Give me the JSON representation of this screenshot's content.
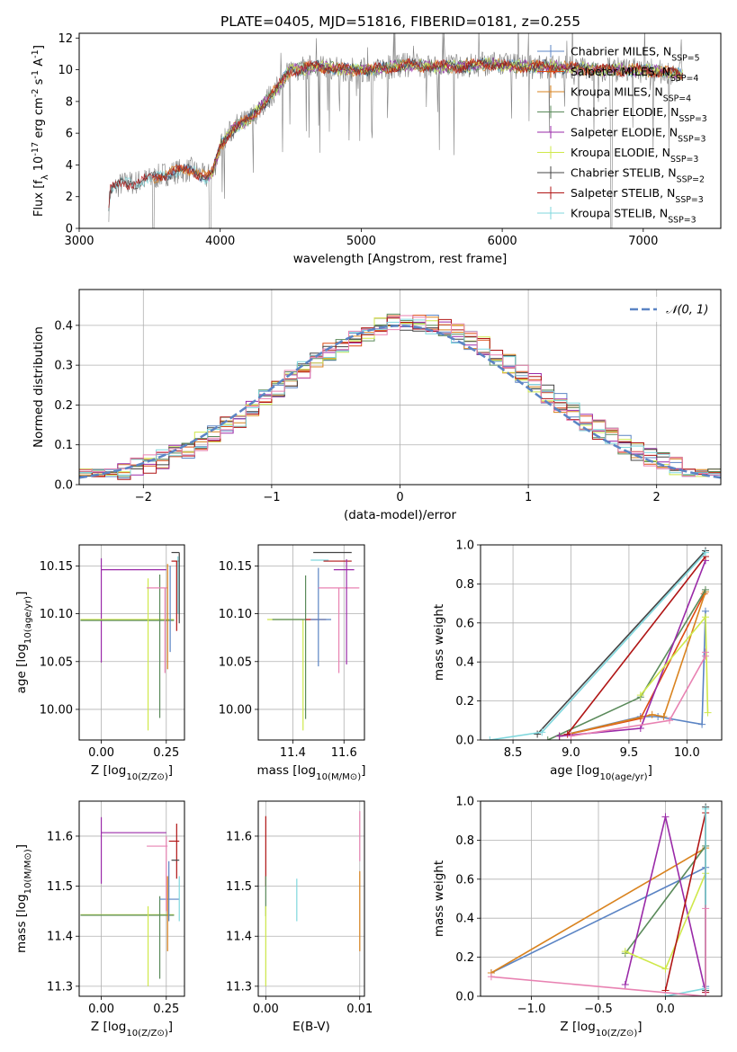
{
  "figure": {
    "title": "PLATE=0405, MJD=51816, FIBERID=0181, z=0.255"
  },
  "colors": {
    "chabrier_miles": "#5b84c4",
    "salpeter_miles": "#dd4c14",
    "kroupa_miles": "#d9831f",
    "chabrier_elodie": "#5a8a5a",
    "salpeter_elodie": "#9a2aa8",
    "kroupa_elodie": "#cfe84a",
    "chabrier_stelib": "#444444",
    "salpeter_stelib": "#b01515",
    "kroupa_stelib": "#7fd7dd",
    "extra_pink": "#e882b2",
    "data_grey": "#808080",
    "gauss": "#5b84c4",
    "grid": "#b0b0b0"
  },
  "chart_data": [
    {
      "id": "spectrum",
      "type": "line",
      "xlabel": "wavelength [Angstrom, rest frame]",
      "ylabel": "Flux [f_λ 10^-17 erg cm^-2 s^-1 A^-1]",
      "xlim": [
        3000,
        7550
      ],
      "ylim": [
        0,
        12.3
      ],
      "xticks": [
        "3000",
        "4000",
        "5000",
        "6000",
        "7000"
      ],
      "yticks": [
        "0",
        "2",
        "4",
        "6",
        "8",
        "10",
        "12"
      ],
      "grid": false,
      "legend_position": "upper-right",
      "legend": [
        "Chabrier MILES, N_SSP=5",
        "Salpeter MILES, N_SSP=4",
        "Kroupa MILES, N_SSP=4",
        "Chabrier ELODIE, N_SSP=3",
        "Salpeter ELODIE, N_SSP=3",
        "Kroupa ELODIE, N_SSP=3",
        "Chabrier STELIB, N_SSP=2",
        "Salpeter STELIB, N_SSP=3",
        "Kroupa STELIB, N_SSP=3"
      ],
      "continuum": {
        "x": [
          3200,
          3220,
          3300,
          3400,
          3500,
          3600,
          3700,
          3800,
          3900,
          3950,
          4000,
          4100,
          4200,
          4300,
          4400,
          4500,
          4700,
          4900,
          5100,
          5300,
          5500,
          5700,
          5900,
          6100,
          6300,
          6500,
          6700,
          6900,
          7100,
          7280
        ],
        "y": [
          0.0,
          2.4,
          2.8,
          2.9,
          3.1,
          3.4,
          3.6,
          3.7,
          3.2,
          3.6,
          5.2,
          6.4,
          6.8,
          7.8,
          8.8,
          10.0,
          10.2,
          10.0,
          10.0,
          10.3,
          10.2,
          10.2,
          10.4,
          10.2,
          10.2,
          10.1,
          10.0,
          10.0,
          9.9,
          9.7
        ]
      }
    },
    {
      "id": "residuals",
      "type": "line",
      "xlabel": "(data-model)/error",
      "ylabel": "Normed distribution",
      "xlim": [
        -2.5,
        2.5
      ],
      "ylim": [
        0,
        0.49
      ],
      "xticks": [
        "-2",
        "-1",
        "0",
        "1",
        "2"
      ],
      "yticks": [
        "0.0",
        "0.1",
        "0.2",
        "0.3",
        "0.4"
      ],
      "grid": true,
      "legend_position": "upper-right",
      "legend": [
        "N(0,1)"
      ],
      "gaussian": {
        "mean": 0,
        "sigma": 1
      },
      "histogram_bin_width": 0.1
    },
    {
      "id": "age-vs-Z",
      "type": "scatter",
      "xlabel": "Z [log10(Z/Z⊙)]",
      "ylabel": "age [log10(age/yr)]",
      "xlim": [
        -0.085,
        0.32
      ],
      "ylim": [
        9.968,
        10.172
      ],
      "xticks": [
        "0.00",
        "0.25"
      ],
      "yticks": [
        "10.00",
        "10.05",
        "10.10",
        "10.15"
      ],
      "grid": true,
      "errorbars": [
        {
          "series": "salpeter_elodie",
          "x": 0.0,
          "xlo": 0.0,
          "xhi": 0.25,
          "y": 10.146,
          "ylo": 10.049,
          "yhi": 10.158
        },
        {
          "series": "kroupa_elodie",
          "x": 0.0,
          "xlo": -0.08,
          "xhi": 0.28,
          "y": 10.094,
          "ylo": 10.094,
          "yhi": 10.094
        },
        {
          "series": "chabrier_elodie",
          "x": 0.0,
          "xlo": -0.08,
          "xhi": 0.28,
          "y": 10.093,
          "ylo": 10.093,
          "yhi": 10.093
        },
        {
          "series": "kroupa_elodie",
          "x": 0.18,
          "xlo": 0.18,
          "xhi": 0.18,
          "y": 10.094,
          "ylo": 9.978,
          "yhi": 10.137
        },
        {
          "series": "chabrier_elodie",
          "x": 0.225,
          "xlo": 0.225,
          "xhi": 0.225,
          "y": 10.094,
          "ylo": 9.991,
          "yhi": 10.141
        },
        {
          "series": "extra_pink",
          "x": 0.245,
          "xlo": 0.175,
          "xhi": 0.255,
          "y": 10.127,
          "ylo": 10.038,
          "yhi": 10.127
        },
        {
          "series": "kroupa_miles",
          "x": 0.255,
          "xlo": 0.255,
          "xhi": 0.255,
          "y": 10.128,
          "ylo": 10.042,
          "yhi": 10.152
        },
        {
          "series": "chabrier_miles",
          "x": 0.265,
          "xlo": 0.265,
          "xhi": 0.265,
          "y": 10.12,
          "ylo": 10.06,
          "yhi": 10.15
        },
        {
          "series": "salpeter_stelib",
          "x": 0.29,
          "xlo": 0.27,
          "xhi": 0.3,
          "y": 10.155,
          "ylo": 10.082,
          "yhi": 10.155
        },
        {
          "series": "chabrier_stelib",
          "x": 0.3,
          "xlo": 0.27,
          "xhi": 0.3,
          "y": 10.164,
          "ylo": 10.09,
          "yhi": 10.164
        },
        {
          "series": "kroupa_stelib",
          "x": 0.295,
          "xlo": 0.295,
          "xhi": 0.295,
          "y": 10.15,
          "ylo": 10.1,
          "yhi": 10.16
        }
      ]
    },
    {
      "id": "age-vs-mass",
      "type": "scatter",
      "xlabel": "mass [log10(M/M⊙)]",
      "xlim": [
        11.265,
        11.68
      ],
      "ylim": [
        9.968,
        10.172
      ],
      "xticks": [
        "11.4",
        "11.6"
      ],
      "yticks": [
        "10.00",
        "10.05",
        "10.10",
        "10.15"
      ],
      "grid": true,
      "errorbars": [
        {
          "series": "kroupa_elodie",
          "x": 11.44,
          "xlo": 11.3,
          "xhi": 11.44,
          "y": 10.094,
          "ylo": 9.978,
          "yhi": 10.094
        },
        {
          "series": "chabrier_elodie",
          "x": 11.45,
          "xlo": 11.32,
          "xhi": 11.45,
          "y": 10.094,
          "ylo": 9.99,
          "yhi": 10.14
        },
        {
          "series": "salpeter_stelib",
          "x": 11.52,
          "xlo": 11.45,
          "xhi": 11.53,
          "y": 10.094,
          "ylo": 10.094,
          "yhi": 10.094
        },
        {
          "series": "chabrier_miles",
          "x": 11.5,
          "xlo": 11.47,
          "xhi": 11.55,
          "y": 10.094,
          "ylo": 10.045,
          "yhi": 10.148
        },
        {
          "series": "chabrier_stelib",
          "x": 11.5,
          "xlo": 11.48,
          "xhi": 11.63,
          "y": 10.164,
          "ylo": 10.164,
          "yhi": 10.164
        },
        {
          "series": "kroupa_stelib",
          "x": 11.5,
          "xlo": 11.47,
          "xhi": 11.54,
          "y": 10.156,
          "ylo": 10.156,
          "yhi": 10.156
        },
        {
          "series": "salpeter_stelib",
          "x": 11.59,
          "xlo": 11.52,
          "xhi": 11.63,
          "y": 10.155,
          "ylo": 10.155,
          "yhi": 10.155
        },
        {
          "series": "extra_pink",
          "x": 11.58,
          "xlo": 11.5,
          "xhi": 11.66,
          "y": 10.127,
          "ylo": 10.038,
          "yhi": 10.127
        },
        {
          "series": "salpeter_elodie",
          "x": 11.61,
          "xlo": 11.56,
          "xhi": 11.64,
          "y": 10.146,
          "ylo": 10.047,
          "yhi": 10.157
        },
        {
          "series": "kroupa_miles",
          "x": 11.58,
          "xlo": 11.58,
          "xhi": 11.58,
          "y": 10.128,
          "ylo": 10.128,
          "yhi": 10.128
        }
      ]
    },
    {
      "id": "mass-weight-vs-age",
      "type": "line",
      "xlabel": "age [log10(age/yr)]",
      "ylabel": "mass weight",
      "xlim": [
        8.22,
        10.3
      ],
      "ylim": [
        0,
        1
      ],
      "xticks": [
        "8.5",
        "9.0",
        "9.5",
        "10.0"
      ],
      "yticks": [
        "0.0",
        "0.2",
        "0.4",
        "0.6",
        "0.8",
        "1.0"
      ],
      "grid": true,
      "series": [
        {
          "name": "Chabrier MILES",
          "color": "chabrier_miles",
          "x": [
            8.9,
            9.6,
            9.75,
            10.13,
            10.16
          ],
          "y": [
            0.02,
            0.12,
            0.12,
            0.08,
            0.66
          ]
        },
        {
          "name": "Salpeter MILES",
          "color": "salpeter_miles",
          "x": [
            8.9,
            9.6,
            10.15
          ],
          "y": [
            0.02,
            0.11,
            0.75
          ]
        },
        {
          "name": "Kroupa MILES",
          "color": "kroupa_miles",
          "x": [
            8.9,
            9.7,
            9.8,
            10.16
          ],
          "y": [
            0.02,
            0.13,
            0.12,
            0.76
          ]
        },
        {
          "name": "Chabrier ELODIE",
          "color": "chabrier_elodie",
          "x": [
            8.8,
            9.6,
            10.16
          ],
          "y": [
            0.0,
            0.22,
            0.77
          ]
        },
        {
          "name": "Salpeter ELODIE",
          "color": "salpeter_elodie",
          "x": [
            8.9,
            9.6,
            10.16
          ],
          "y": [
            0.02,
            0.06,
            0.92
          ]
        },
        {
          "name": "Kroupa ELODIE",
          "color": "kroupa_elodie",
          "x": [
            9.6,
            10.16,
            10.18
          ],
          "y": [
            0.23,
            0.63,
            0.14
          ]
        },
        {
          "name": "Chabrier STELIB",
          "color": "chabrier_stelib",
          "x": [
            8.71,
            10.16
          ],
          "y": [
            0.03,
            0.97
          ]
        },
        {
          "name": "Salpeter STELIB",
          "color": "salpeter_stelib",
          "x": [
            8.97,
            10.16
          ],
          "y": [
            0.03,
            0.94
          ]
        },
        {
          "name": "Kroupa STELIB",
          "color": "kroupa_stelib",
          "x": [
            8.3,
            8.75,
            10.16
          ],
          "y": [
            0.0,
            0.04,
            0.96
          ]
        },
        {
          "name": "",
          "color": "extra_pink",
          "x": [
            9.0,
            9.85,
            10.16,
            10.16
          ],
          "y": [
            0.02,
            0.1,
            0.43,
            0.45
          ]
        }
      ]
    },
    {
      "id": "mass-vs-Z",
      "type": "scatter",
      "xlabel": "Z [log10(Z/Z⊙)]",
      "ylabel": "mass [log10(M/M⊙)]",
      "xlim": [
        -0.085,
        0.32
      ],
      "ylim": [
        11.28,
        11.67
      ],
      "xticks": [
        "0.00",
        "0.25"
      ],
      "yticks": [
        "11.3",
        "11.4",
        "11.5",
        "11.6"
      ],
      "grid": true,
      "errorbars": [
        {
          "series": "salpeter_elodie",
          "x": 0.0,
          "xlo": 0.0,
          "xhi": 0.25,
          "y": 11.607,
          "ylo": 11.505,
          "yhi": 11.638
        },
        {
          "series": "kroupa_elodie",
          "x": 0.0,
          "xlo": -0.08,
          "xhi": 0.28,
          "y": 11.443,
          "ylo": 11.443,
          "yhi": 11.443
        },
        {
          "series": "chabrier_elodie",
          "x": 0.0,
          "xlo": -0.08,
          "xhi": 0.28,
          "y": 11.442,
          "ylo": 11.442,
          "yhi": 11.442
        },
        {
          "series": "kroupa_elodie",
          "x": 0.18,
          "xlo": 0.18,
          "xhi": 0.18,
          "y": 11.44,
          "ylo": 11.3,
          "yhi": 11.46
        },
        {
          "series": "chabrier_elodie",
          "x": 0.225,
          "xlo": 0.225,
          "xhi": 0.225,
          "y": 11.44,
          "ylo": 11.315,
          "yhi": 11.48
        },
        {
          "series": "chabrier_miles",
          "x": 0.26,
          "xlo": 0.225,
          "xhi": 0.3,
          "y": 11.474,
          "ylo": 11.43,
          "yhi": 11.55
        },
        {
          "series": "extra_pink",
          "x": 0.25,
          "xlo": 0.175,
          "xhi": 0.255,
          "y": 11.58,
          "ylo": 11.45,
          "yhi": 11.6
        },
        {
          "series": "kroupa_miles",
          "x": 0.255,
          "xlo": 0.255,
          "xhi": 0.255,
          "y": 11.44,
          "ylo": 11.37,
          "yhi": 11.52
        },
        {
          "series": "salpeter_stelib",
          "x": 0.29,
          "xlo": 0.26,
          "xhi": 0.3,
          "y": 11.59,
          "ylo": 11.515,
          "yhi": 11.625
        },
        {
          "series": "chabrier_stelib",
          "x": 0.29,
          "xlo": 0.27,
          "xhi": 0.3,
          "y": 11.552,
          "ylo": 11.552,
          "yhi": 11.552
        },
        {
          "series": "kroupa_stelib",
          "x": 0.3,
          "xlo": 0.3,
          "xhi": 0.3,
          "y": 11.48,
          "ylo": 11.43,
          "yhi": 11.52
        }
      ]
    },
    {
      "id": "mass-vs-ebv",
      "type": "scatter",
      "xlabel": "E(B-V)",
      "xlim": [
        -0.0008,
        0.0105
      ],
      "ylim": [
        11.28,
        11.67
      ],
      "xticks": [
        "0.00",
        "0.01"
      ],
      "yticks": [
        "11.3",
        "11.4",
        "11.5",
        "11.6"
      ],
      "grid": true,
      "errorbars": [
        {
          "series": "salpeter_stelib",
          "x": 0.0,
          "xlo": 0.0,
          "xhi": 0.0,
          "y": 11.58,
          "ylo": 11.5,
          "yhi": 11.64
        },
        {
          "series": "chabrier_elodie",
          "x": 0.0,
          "xlo": 0.0,
          "xhi": 0.0,
          "y": 11.48,
          "ylo": 11.44,
          "yhi": 11.52
        },
        {
          "series": "kroupa_elodie",
          "x": 0.0,
          "xlo": 0.0,
          "xhi": 0.0,
          "y": 11.38,
          "ylo": 11.3,
          "yhi": 11.46
        },
        {
          "series": "kroupa_stelib",
          "x": 0.0033,
          "xlo": 0.0033,
          "xhi": 0.0033,
          "y": 11.47,
          "ylo": 11.43,
          "yhi": 11.515
        },
        {
          "series": "extra_pink",
          "x": 0.01,
          "xlo": 0.01,
          "xhi": 0.01,
          "y": 11.6,
          "ylo": 11.55,
          "yhi": 11.65
        },
        {
          "series": "kroupa_miles",
          "x": 0.01,
          "xlo": 0.01,
          "xhi": 0.01,
          "y": 11.44,
          "ylo": 11.37,
          "yhi": 11.53
        }
      ]
    },
    {
      "id": "mass-weight-vs-Z",
      "type": "line",
      "xlabel": "Z [log10(Z/Z⊙)]",
      "ylabel": "mass weight",
      "xlim": [
        -1.38,
        0.42
      ],
      "ylim": [
        0,
        1
      ],
      "xticks": [
        "-1.0",
        "-0.5",
        "0.0"
      ],
      "yticks": [
        "0.0",
        "0.2",
        "0.4",
        "0.6",
        "0.8",
        "1.0"
      ],
      "grid": true,
      "series": [
        {
          "name": "Chabrier MILES",
          "color": "chabrier_miles",
          "x": [
            -1.3,
            0.3,
            0.3
          ],
          "y": [
            0.12,
            0.66,
            0.05
          ]
        },
        {
          "name": "Kroupa MILES",
          "color": "kroupa_miles",
          "x": [
            -1.3,
            0.3
          ],
          "y": [
            0.12,
            0.76
          ]
        },
        {
          "name": "Chabrier ELODIE",
          "color": "chabrier_elodie",
          "x": [
            -0.3,
            0.3
          ],
          "y": [
            0.22,
            0.77
          ]
        },
        {
          "name": "Salpeter ELODIE",
          "color": "salpeter_elodie",
          "x": [
            -0.3,
            0.0,
            0.3
          ],
          "y": [
            0.06,
            0.92,
            0.02
          ]
        },
        {
          "name": "Kroupa ELODIE",
          "color": "kroupa_elodie",
          "x": [
            -0.3,
            0.0,
            0.3
          ],
          "y": [
            0.23,
            0.14,
            0.63
          ]
        },
        {
          "name": "Salpeter STELIB",
          "color": "salpeter_stelib",
          "x": [
            0.0,
            0.3,
            0.3
          ],
          "y": [
            0.03,
            0.94,
            0.02
          ]
        },
        {
          "name": "Chabrier STELIB",
          "color": "chabrier_stelib",
          "x": [
            0.3,
            0.3
          ],
          "y": [
            0.03,
            0.97
          ]
        },
        {
          "name": "Kroupa STELIB",
          "color": "kroupa_stelib",
          "x": [
            0.0,
            0.3,
            0.3
          ],
          "y": [
            0.0,
            0.04,
            0.96
          ]
        },
        {
          "name": "",
          "color": "extra_pink",
          "x": [
            -1.3,
            0.3,
            0.3
          ],
          "y": [
            0.1,
            0.0,
            0.45
          ]
        }
      ]
    }
  ]
}
